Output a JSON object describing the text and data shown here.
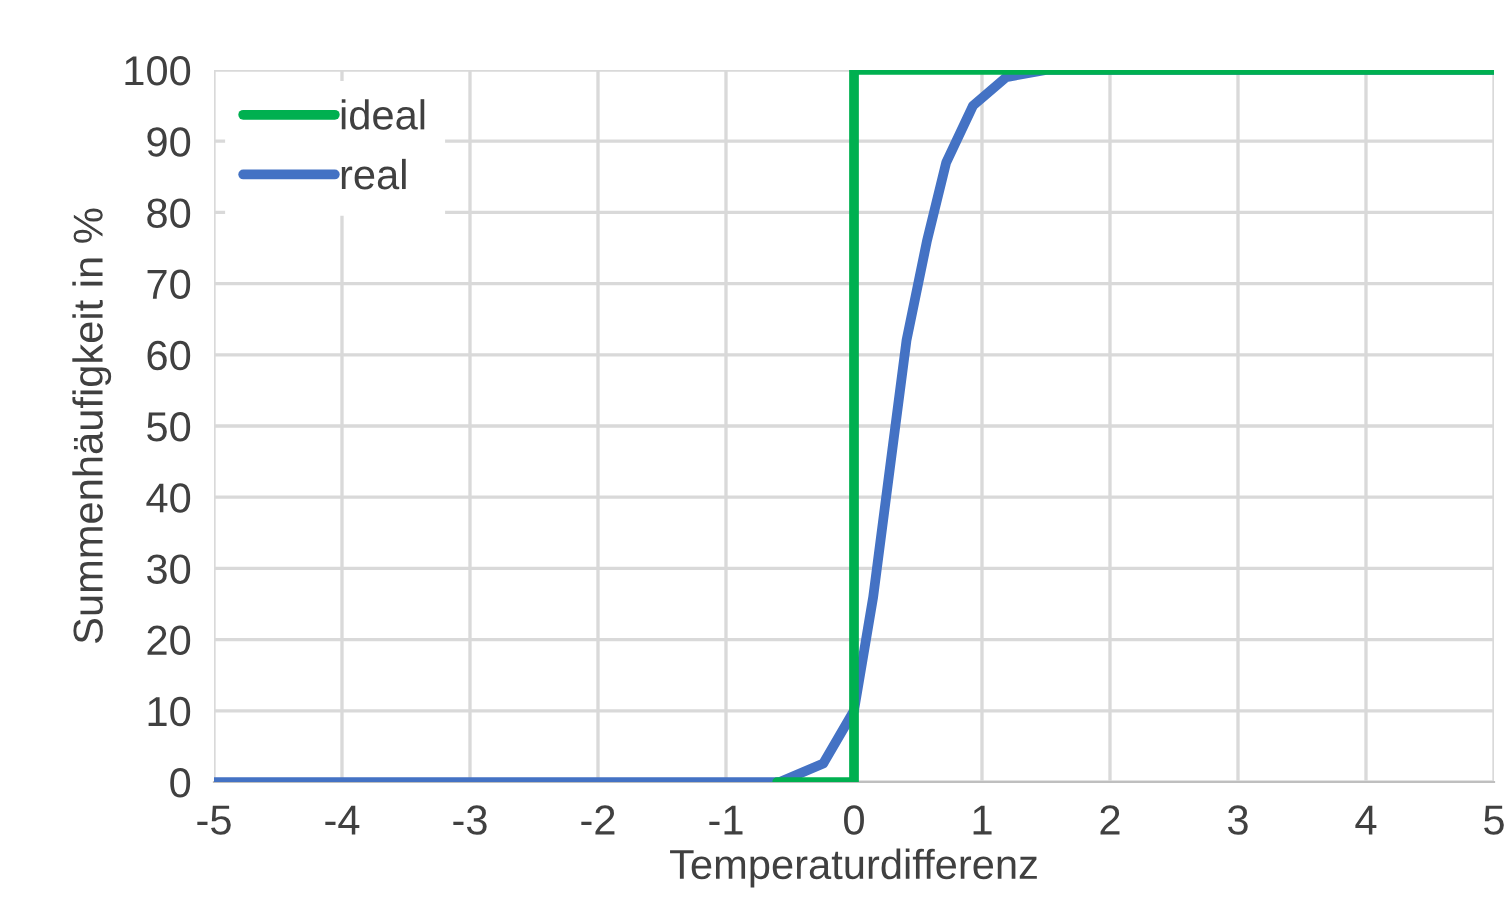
{
  "chart_data": {
    "type": "line",
    "xlabel": "Temperaturdifferenz",
    "ylabel": "Summenhäufigkeit in %",
    "xlim": [
      -5,
      5
    ],
    "xticks": [
      -5,
      -4,
      -3,
      -2,
      -1,
      0,
      1,
      2,
      3,
      4,
      5
    ],
    "ylim": [
      0,
      100
    ],
    "yticks": [
      0,
      10,
      20,
      30,
      40,
      50,
      60,
      70,
      80,
      90,
      100
    ],
    "grid": true,
    "legend": "top left",
    "marker": "none",
    "line_style": "solid",
    "series": [
      {
        "name": "ideal",
        "color": "#00b050",
        "x": [
          -0.6,
          -0.1,
          0,
          0,
          0.1,
          5
        ],
        "values": [
          0,
          0,
          0,
          100,
          100,
          100
        ]
      },
      {
        "name": "real",
        "color": "#4472c4",
        "x": [
          -5,
          -0.58,
          -0.24,
          0,
          0.15,
          0.28,
          0.41,
          0.57,
          0.72,
          0.93,
          1.19,
          1.5,
          5
        ],
        "values": [
          0,
          0,
          2.6,
          10,
          26,
          44,
          62,
          76,
          87,
          95,
          99,
          100,
          100
        ]
      }
    ]
  }
}
